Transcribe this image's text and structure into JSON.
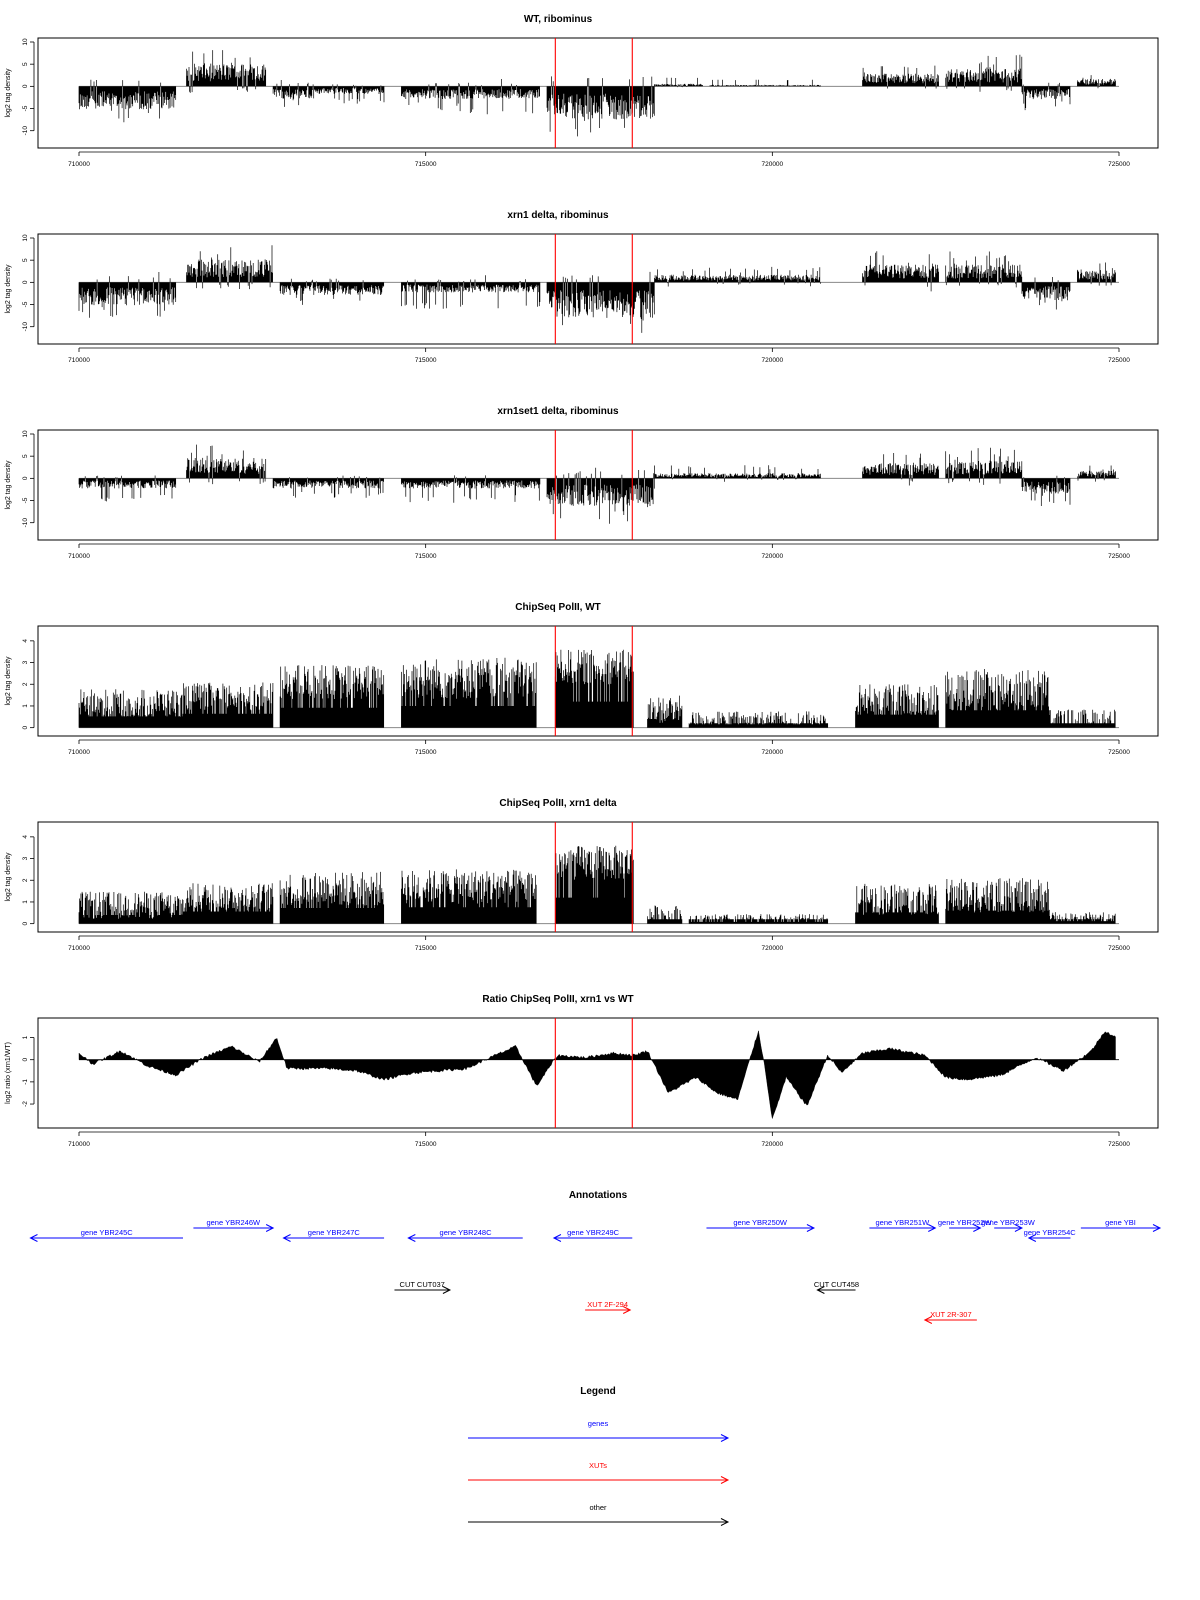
{
  "chart_data": [
    {
      "type": "bar",
      "title": "WT, ribominus",
      "ylabel": "log2 tag density",
      "xlim": [
        710000,
        725000
      ],
      "ylim": [
        -13,
        10
      ],
      "xticks": [
        710000,
        715000,
        720000,
        725000
      ],
      "yticks": [
        -10,
        -5,
        0,
        5,
        10
      ],
      "markers": [
        716870,
        717980
      ],
      "segments": [
        {
          "x": [
            710000,
            711400
          ],
          "level": -4.5,
          "amp": 2.0
        },
        {
          "x": [
            711550,
            712700
          ],
          "level": 4.5,
          "amp": 2.2
        },
        {
          "x": [
            712800,
            713400
          ],
          "level": -2.5,
          "amp": 1.5
        },
        {
          "x": [
            713400,
            714400
          ],
          "level": -1.5,
          "amp": 1.5
        },
        {
          "x": [
            714650,
            715500
          ],
          "level": -2.5,
          "amp": 2.0
        },
        {
          "x": [
            715500,
            716650
          ],
          "level": -2.5,
          "amp": 2.5
        },
        {
          "x": [
            716750,
            718300
          ],
          "level": -6.5,
          "amp": 2.8
        },
        {
          "x": [
            718300,
            719000
          ],
          "level": 0.5,
          "amp": 1.0
        },
        {
          "x": [
            719100,
            720700
          ],
          "level": 0.3,
          "amp": 0.8
        },
        {
          "x": [
            721300,
            722400
          ],
          "level": 2.5,
          "amp": 1.5
        },
        {
          "x": [
            722500,
            723600
          ],
          "level": 3.5,
          "amp": 2.2
        },
        {
          "x": [
            723600,
            724300
          ],
          "level": -2.5,
          "amp": 1.8
        },
        {
          "x": [
            724400,
            724950
          ],
          "level": 1.5,
          "amp": 1.0
        }
      ]
    },
    {
      "type": "bar",
      "title": "xrn1 delta, ribominus",
      "ylabel": "log2 tag density",
      "xlim": [
        710000,
        725000
      ],
      "ylim": [
        -13,
        10
      ],
      "xticks": [
        710000,
        715000,
        720000,
        725000
      ],
      "yticks": [
        -10,
        -5,
        0,
        5,
        10
      ],
      "markers": [
        716870,
        717980
      ],
      "segments": [
        {
          "x": [
            710000,
            711400
          ],
          "level": -4.5,
          "amp": 2.0
        },
        {
          "x": [
            711550,
            712800
          ],
          "level": 4.5,
          "amp": 2.3
        },
        {
          "x": [
            712900,
            714400
          ],
          "level": -2.5,
          "amp": 1.5
        },
        {
          "x": [
            714650,
            716650
          ],
          "level": -2.0,
          "amp": 2.5
        },
        {
          "x": [
            716750,
            718300
          ],
          "level": -7.0,
          "amp": 2.5
        },
        {
          "x": [
            718300,
            720700
          ],
          "level": 1.5,
          "amp": 1.2
        },
        {
          "x": [
            721300,
            722400
          ],
          "level": 3.5,
          "amp": 2.0
        },
        {
          "x": [
            722500,
            723600
          ],
          "level": 3.5,
          "amp": 2.2
        },
        {
          "x": [
            723600,
            724300
          ],
          "level": -3.5,
          "amp": 2.0
        },
        {
          "x": [
            724400,
            724950
          ],
          "level": 2.5,
          "amp": 1.2
        }
      ]
    },
    {
      "type": "bar",
      "title": "xrn1set1 delta, ribominus",
      "ylabel": "log2 tag density",
      "xlim": [
        710000,
        725000
      ],
      "ylim": [
        -13,
        10
      ],
      "xticks": [
        710000,
        715000,
        720000,
        725000
      ],
      "yticks": [
        -10,
        -5,
        0,
        5,
        10
      ],
      "markers": [
        716870,
        717980
      ],
      "segments": [
        {
          "x": [
            710000,
            711400
          ],
          "level": -2.0,
          "amp": 2.0
        },
        {
          "x": [
            711550,
            712700
          ],
          "level": 4.0,
          "amp": 2.2
        },
        {
          "x": [
            712800,
            714400
          ],
          "level": -2.0,
          "amp": 1.5
        },
        {
          "x": [
            714650,
            716650
          ],
          "level": -2.0,
          "amp": 2.2
        },
        {
          "x": [
            716750,
            718300
          ],
          "level": -5.5,
          "amp": 3.0
        },
        {
          "x": [
            718300,
            720700
          ],
          "level": 1.0,
          "amp": 1.2
        },
        {
          "x": [
            721300,
            722400
          ],
          "level": 3.0,
          "amp": 1.8
        },
        {
          "x": [
            722500,
            723600
          ],
          "level": 3.5,
          "amp": 2.0
        },
        {
          "x": [
            723600,
            724300
          ],
          "level": -3.0,
          "amp": 2.0
        },
        {
          "x": [
            724400,
            724950
          ],
          "level": 1.5,
          "amp": 1.0
        }
      ]
    },
    {
      "type": "bar",
      "title": "ChipSeq PolII, WT",
      "ylabel": "log2 tag density",
      "xlim": [
        710000,
        725000
      ],
      "ylim": [
        -0.2,
        4.5
      ],
      "xticks": [
        710000,
        715000,
        720000,
        725000
      ],
      "yticks": [
        0,
        1,
        2,
        3,
        4
      ],
      "markers": [
        716870,
        717980
      ],
      "segments": [
        {
          "x": [
            710000,
            711500
          ],
          "level": 1.3,
          "amp": 0.8
        },
        {
          "x": [
            711500,
            712800
          ],
          "level": 1.6,
          "amp": 0.8
        },
        {
          "x": [
            712900,
            714400
          ],
          "level": 2.3,
          "amp": 1.0
        },
        {
          "x": [
            714650,
            716600
          ],
          "level": 2.5,
          "amp": 1.2
        },
        {
          "x": [
            716870,
            718000
          ],
          "level": 3.0,
          "amp": 1.0
        },
        {
          "x": [
            718200,
            718700
          ],
          "level": 1.0,
          "amp": 0.8
        },
        {
          "x": [
            718800,
            720800
          ],
          "level": 0.4,
          "amp": 0.6
        },
        {
          "x": [
            721200,
            722400
          ],
          "level": 1.5,
          "amp": 0.9
        },
        {
          "x": [
            722500,
            724000
          ],
          "level": 2.0,
          "amp": 1.2
        },
        {
          "x": [
            724000,
            724950
          ],
          "level": 0.5,
          "amp": 0.6
        }
      ]
    },
    {
      "type": "bar",
      "title": "ChipSeq PolII, xrn1 delta",
      "ylabel": "log2 tag density",
      "xlim": [
        710000,
        725000
      ],
      "ylim": [
        -0.2,
        4.5
      ],
      "xticks": [
        710000,
        715000,
        720000,
        725000
      ],
      "yticks": [
        0,
        1,
        2,
        3,
        4
      ],
      "markers": [
        716870,
        717980
      ],
      "segments": [
        {
          "x": [
            710000,
            711500
          ],
          "level": 1.0,
          "amp": 0.8
        },
        {
          "x": [
            711500,
            712800
          ],
          "level": 1.4,
          "amp": 0.8
        },
        {
          "x": [
            712900,
            714400
          ],
          "level": 1.8,
          "amp": 1.0
        },
        {
          "x": [
            714650,
            716600
          ],
          "level": 1.9,
          "amp": 1.0
        },
        {
          "x": [
            716870,
            718000
          ],
          "level": 3.0,
          "amp": 1.0
        },
        {
          "x": [
            718200,
            718700
          ],
          "level": 0.5,
          "amp": 0.6
        },
        {
          "x": [
            718800,
            720800
          ],
          "level": 0.2,
          "amp": 0.4
        },
        {
          "x": [
            721200,
            722400
          ],
          "level": 1.3,
          "amp": 0.9
        },
        {
          "x": [
            722500,
            724000
          ],
          "level": 1.5,
          "amp": 1.0
        },
        {
          "x": [
            724000,
            724950
          ],
          "level": 0.3,
          "amp": 0.4
        }
      ]
    },
    {
      "type": "area",
      "title": "Ratio ChipSeq PolII, xrn1 vs WT",
      "ylabel": "log2 ratio (xrn1/WT)",
      "xlim": [
        710000,
        725000
      ],
      "ylim": [
        -2.9,
        1.7
      ],
      "xticks": [
        710000,
        715000,
        720000,
        725000
      ],
      "yticks": [
        -2,
        -1,
        0,
        1
      ],
      "markers": [
        716870,
        717980
      ],
      "x": [
        710000,
        710200,
        710600,
        711000,
        711400,
        711800,
        712200,
        712600,
        712850,
        713000,
        713600,
        714000,
        714400,
        714800,
        715200,
        715600,
        716000,
        716300,
        716600,
        716900,
        717300,
        717700,
        718000,
        718200,
        718500,
        718900,
        719200,
        719500,
        719800,
        719900,
        720000,
        720200,
        720500,
        720800,
        721000,
        721300,
        721700,
        722200,
        722500,
        722800,
        723300,
        723800,
        724200,
        724600,
        724800,
        724950
      ],
      "y": [
        0.3,
        -0.2,
        0.4,
        -0.3,
        -0.7,
        0.1,
        0.6,
        -0.1,
        1.0,
        -0.4,
        -0.4,
        -0.5,
        -0.9,
        -0.6,
        -0.5,
        -0.4,
        0.2,
        0.6,
        -1.2,
        0.2,
        0.1,
        0.3,
        0.2,
        0.4,
        -1.5,
        -0.8,
        -1.5,
        -1.8,
        1.3,
        -0.5,
        -2.7,
        -0.8,
        -2.1,
        0.2,
        -0.6,
        0.3,
        0.5,
        0.2,
        -0.8,
        -0.9,
        -0.7,
        0.1,
        -0.5,
        0.4,
        1.3,
        1.0
      ]
    }
  ],
  "annotations": {
    "title": "Annotations",
    "xlim": [
      710000,
      725000
    ],
    "features": [
      {
        "label": "gene YBR245C",
        "class": "gene",
        "start": 709300,
        "end": 711500,
        "strand": "-",
        "row": 1
      },
      {
        "label": "gene YBR246W",
        "class": "gene",
        "start": 711650,
        "end": 712800,
        "strand": "+",
        "row": 0
      },
      {
        "label": "gene YBR247C",
        "class": "gene",
        "start": 712950,
        "end": 714400,
        "strand": "-",
        "row": 1
      },
      {
        "label": "gene YBR248C",
        "class": "gene",
        "start": 714750,
        "end": 716400,
        "strand": "-",
        "row": 1
      },
      {
        "label": "gene YBR249C",
        "class": "gene",
        "start": 716850,
        "end": 717980,
        "strand": "-",
        "row": 1
      },
      {
        "label": "gene YBR250W",
        "class": "gene",
        "start": 719050,
        "end": 720600,
        "strand": "+",
        "row": 0
      },
      {
        "label": "gene YBR251W",
        "class": "gene",
        "start": 721400,
        "end": 722350,
        "strand": "+",
        "row": 0
      },
      {
        "label": "gene YBR252W",
        "class": "gene",
        "start": 722550,
        "end": 723000,
        "strand": "+",
        "row": 0
      },
      {
        "label": "gene YBR253W",
        "class": "gene",
        "start": 723200,
        "end": 723600,
        "strand": "+",
        "row": 0
      },
      {
        "label": "gene YBR254C",
        "class": "gene",
        "start": 723700,
        "end": 724300,
        "strand": "-",
        "row": 1
      },
      {
        "label": "gene YBI",
        "class": "gene",
        "start": 724450,
        "end": 725600,
        "strand": "+",
        "row": 0
      },
      {
        "label": "CUT CUT037",
        "class": "other",
        "start": 714550,
        "end": 715350,
        "strand": "+",
        "row": 2
      },
      {
        "label": "CUT CUT458",
        "class": "other",
        "start": 720650,
        "end": 721200,
        "strand": "-",
        "row": 2
      },
      {
        "label": "XUT 2F-294",
        "class": "xut",
        "start": 717300,
        "end": 717950,
        "strand": "+",
        "row": 3
      },
      {
        "label": "XUT 2R-307",
        "class": "xut",
        "start": 722200,
        "end": 722950,
        "strand": "-",
        "row": 4
      }
    ]
  },
  "legend": {
    "title": "Legend",
    "items": [
      {
        "label": "genes",
        "color": "#0000ff"
      },
      {
        "label": "XUTs",
        "color": "#ff0000"
      },
      {
        "label": "other",
        "color": "#000000"
      }
    ]
  },
  "colors": {
    "gene": "#0000ff",
    "xut": "#ff0000",
    "other": "#000000",
    "marker": "#ff0000",
    "zero": "#888888"
  }
}
